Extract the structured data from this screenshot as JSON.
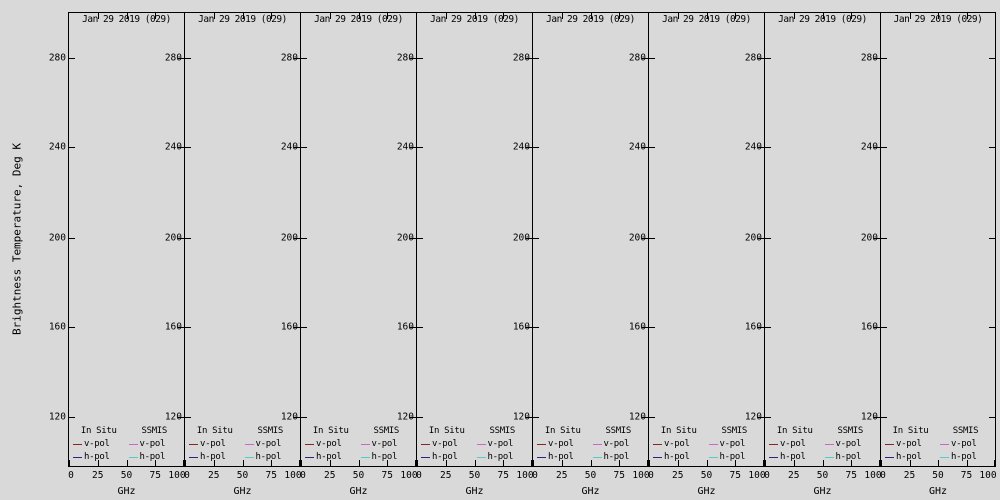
{
  "colors": {
    "background": "#d9d9d9",
    "axis": "#000000",
    "insitu_vpol": "#8b2222",
    "insitu_hpol": "#26267e",
    "ssmis_vpol": "#cc66cc",
    "ssmis_hpol": "#55cccc"
  },
  "figure": {
    "y_axis_label": "Brightness Temperature, Deg K",
    "panel_count": 8
  },
  "panel": {
    "title": "Jan 29 2019 (029)",
    "y_ticks": [
      "280",
      "240",
      "200",
      "160",
      "120"
    ],
    "x_ticks": [
      "0",
      "25",
      "50",
      "75",
      "100"
    ],
    "x_axis_label": "GHz",
    "legend": {
      "col1_header": "In Situ",
      "col2_header": "SSMIS",
      "rows": [
        {
          "label": "v-pol",
          "insitu_color": "#8b2222",
          "ssmis_color": "#cc66cc"
        },
        {
          "label": "h-pol",
          "insitu_color": "#26267e",
          "ssmis_color": "#55cccc"
        }
      ]
    }
  },
  "chart_data": {
    "type": "line",
    "panels": 8,
    "panel_title": "Jan 29 2019 (029)",
    "xlabel": "GHz",
    "ylabel": "Brightness Temperature, Deg K",
    "xlim": [
      0,
      100
    ],
    "xticks": [
      0,
      25,
      50,
      75,
      100
    ],
    "ylim": [
      100,
      300
    ],
    "yticks": [
      120,
      160,
      200,
      240,
      280
    ],
    "legend_entries": [
      "In Situ v-pol",
      "In Situ h-pol",
      "SSMIS v-pol",
      "SSMIS h-pol"
    ],
    "series": [],
    "note": "All 8 panels are empty; axes, titles and legends only, no data curves plotted"
  }
}
